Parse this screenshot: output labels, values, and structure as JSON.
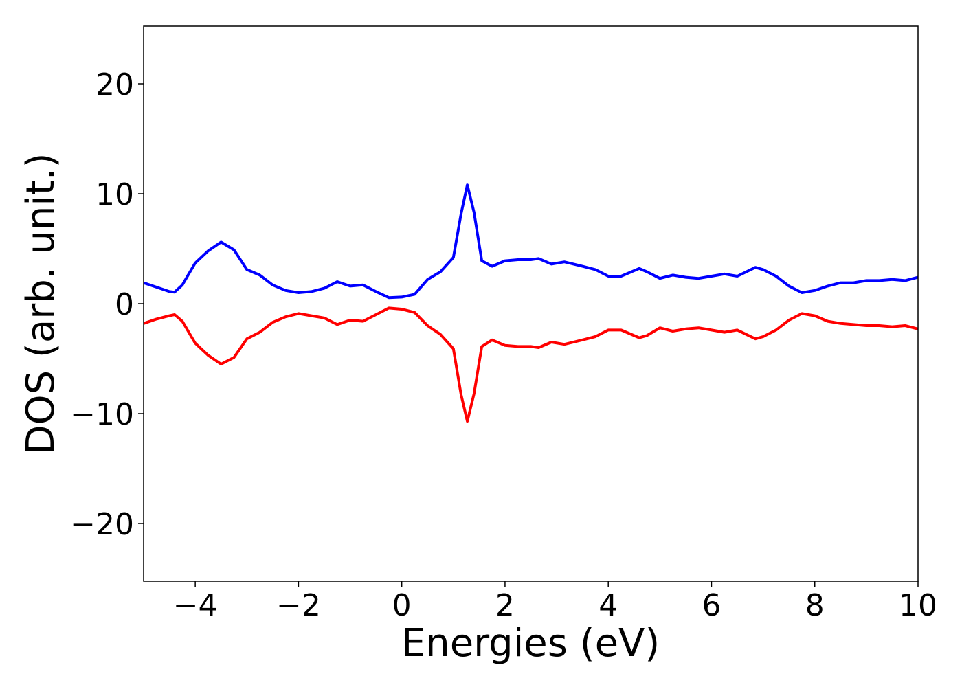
{
  "chart_data": {
    "type": "line",
    "xlabel": "Energies (eV)",
    "ylabel": "DOS (arb. unit.)",
    "x": [
      -5,
      -4.75,
      -4.5,
      -4.4,
      -4.25,
      -4,
      -3.75,
      -3.5,
      -3.25,
      -3,
      -2.75,
      -2.5,
      -2.25,
      -2,
      -1.75,
      -1.5,
      -1.25,
      -1,
      -0.75,
      -0.5,
      -0.25,
      0,
      0.25,
      0.5,
      0.75,
      1,
      1.15,
      1.27,
      1.4,
      1.55,
      1.75,
      2,
      2.25,
      2.5,
      2.65,
      2.9,
      3.15,
      3.5,
      3.75,
      4,
      4.25,
      4.6,
      4.75,
      5,
      5.25,
      5.5,
      5.75,
      6,
      6.25,
      6.5,
      6.85,
      7,
      7.25,
      7.5,
      7.75,
      8,
      8.25,
      8.5,
      8.75,
      9,
      9.25,
      9.5,
      9.75,
      10
    ],
    "series": [
      {
        "color": "#0000ff",
        "values": [
          1.9,
          1.5,
          1.1,
          1.05,
          1.7,
          3.7,
          4.8,
          5.6,
          4.9,
          3.1,
          2.6,
          1.7,
          1.2,
          1.0,
          1.1,
          1.4,
          2.0,
          1.6,
          1.7,
          1.1,
          0.55,
          0.6,
          0.85,
          2.2,
          2.9,
          4.2,
          8.2,
          10.8,
          8.3,
          3.9,
          3.4,
          3.9,
          4.0,
          4.0,
          4.1,
          3.6,
          3.8,
          3.4,
          3.1,
          2.5,
          2.5,
          3.2,
          2.9,
          2.3,
          2.6,
          2.4,
          2.3,
          2.5,
          2.7,
          2.5,
          3.3,
          3.1,
          2.5,
          1.6,
          1.0,
          1.2,
          1.6,
          1.9,
          1.9,
          2.1,
          2.1,
          2.2,
          2.1,
          2.4
        ]
      },
      {
        "color": "#ff0000",
        "values": [
          -1.8,
          -1.4,
          -1.1,
          -1.0,
          -1.6,
          -3.6,
          -4.7,
          -5.5,
          -4.9,
          -3.2,
          -2.6,
          -1.7,
          -1.2,
          -0.9,
          -1.1,
          -1.3,
          -1.9,
          -1.5,
          -1.6,
          -1.0,
          -0.4,
          -0.5,
          -0.8,
          -2.0,
          -2.8,
          -4.1,
          -8.3,
          -10.7,
          -8.2,
          -3.9,
          -3.3,
          -3.8,
          -3.9,
          -3.9,
          -4.0,
          -3.5,
          -3.7,
          -3.3,
          -3.0,
          -2.4,
          -2.4,
          -3.1,
          -2.9,
          -2.2,
          -2.5,
          -2.3,
          -2.2,
          -2.4,
          -2.6,
          -2.4,
          -3.2,
          -3.0,
          -2.4,
          -1.5,
          -0.9,
          -1.1,
          -1.6,
          -1.8,
          -1.9,
          -2.0,
          -2.0,
          -2.1,
          -2.0,
          -2.3
        ]
      }
    ],
    "xlim": [
      -5,
      10
    ],
    "ylim": [
      -25.25,
      25.25
    ],
    "xticks": [
      {
        "value": -4,
        "label": "−4"
      },
      {
        "value": -2,
        "label": "−2"
      },
      0,
      2,
      4,
      6,
      8,
      10
    ],
    "yticks": [
      {
        "value": -20,
        "label": "−20"
      },
      {
        "value": -10,
        "label": "−10"
      },
      0,
      10,
      20
    ],
    "grid": false
  }
}
